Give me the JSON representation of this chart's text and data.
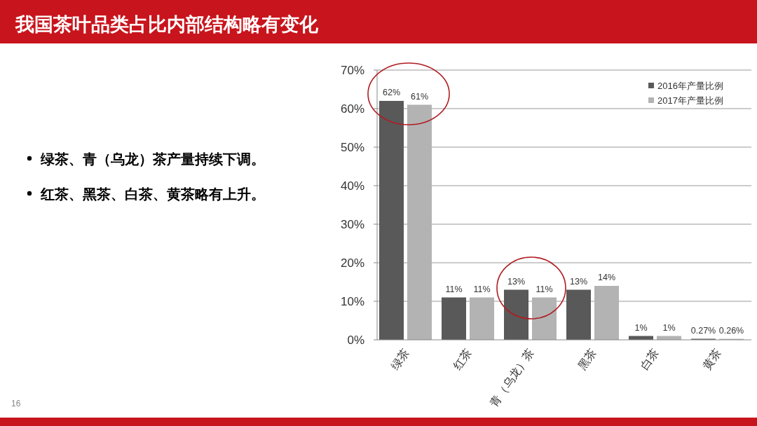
{
  "chart_data": {
    "type": "bar",
    "title": "我国茶叶品类占比内部结构略有变化",
    "categories": [
      "绿茶",
      "红茶",
      "青（乌龙）茶",
      "黑茶",
      "白茶",
      "黄茶"
    ],
    "series": [
      {
        "name": "2016年产量比例",
        "color": "#595959",
        "values": [
          62,
          11,
          13,
          13,
          1,
          0.27
        ],
        "value_labels": [
          "62%",
          "11%",
          "13%",
          "13%",
          "1%",
          "0.27%"
        ]
      },
      {
        "name": "2017年产量比例",
        "color": "#b3b3b3",
        "values": [
          61,
          11,
          11,
          14,
          1,
          0.26
        ],
        "value_labels": [
          "61%",
          "11%",
          "11%",
          "14%",
          "1%",
          "0.26%"
        ]
      }
    ],
    "ylim": [
      0,
      70
    ],
    "yticks": [
      {
        "value": 0,
        "label": "0%"
      },
      {
        "value": 10,
        "label": "10%"
      },
      {
        "value": 20,
        "label": "20%"
      },
      {
        "value": 30,
        "label": "30%"
      },
      {
        "value": 40,
        "label": "40%"
      },
      {
        "value": 50,
        "label": "50%"
      },
      {
        "value": 60,
        "label": "60%"
      },
      {
        "value": 70,
        "label": "70%"
      }
    ],
    "grid": "y",
    "legend": "top right",
    "annotations": [
      "绿茶、青（乌龙）茶产量持续下调。",
      "红茶、黑茶、白茶、黄茶略有上升。",
      "16"
    ]
  }
}
